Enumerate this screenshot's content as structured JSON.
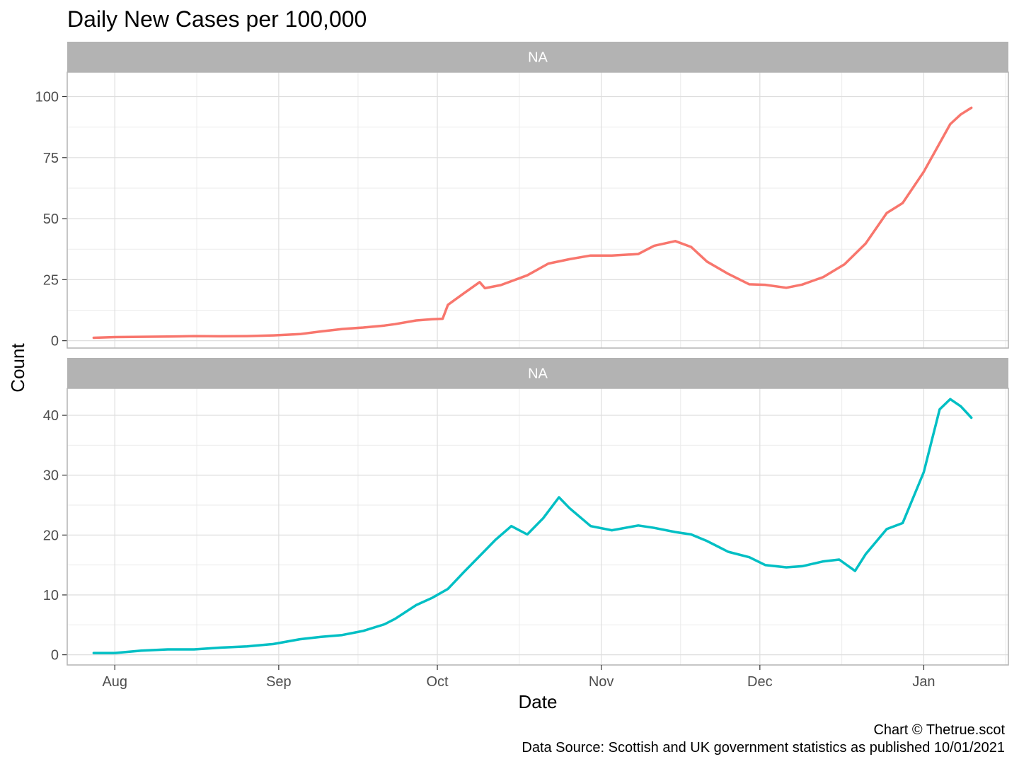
{
  "chart_data": {
    "type": "line",
    "title": "Daily New Cases per 100,000",
    "xlabel": "Date",
    "ylabel": "Count",
    "caption": [
      "Chart © Thetrue.scot",
      "Data Source: Scottish and UK government statistics as published 10/01/2021"
    ],
    "x_ticks": [
      {
        "label": "Aug",
        "date": "2020-08-01"
      },
      {
        "label": "Sep",
        "date": "2020-09-01"
      },
      {
        "label": "Oct",
        "date": "2020-10-01"
      },
      {
        "label": "Nov",
        "date": "2020-11-01"
      },
      {
        "label": "Dec",
        "date": "2020-12-01"
      },
      {
        "label": "Jan",
        "date": "2021-01-01"
      }
    ],
    "x_range": [
      "2020-07-23",
      "2021-01-17"
    ],
    "grid": true,
    "legend": "none",
    "panels": [
      {
        "strip": "NA",
        "color": "#F8766D",
        "ylim": [
          -3,
          110
        ],
        "y_ticks": [
          0,
          25,
          50,
          75,
          100
        ],
        "x": [
          "2020-07-28",
          "2020-08-01",
          "2020-08-06",
          "2020-08-11",
          "2020-08-16",
          "2020-08-21",
          "2020-08-26",
          "2020-08-31",
          "2020-09-05",
          "2020-09-09",
          "2020-09-13",
          "2020-09-17",
          "2020-09-21",
          "2020-09-23",
          "2020-09-27",
          "2020-09-30",
          "2020-10-02",
          "2020-10-03",
          "2020-10-06",
          "2020-10-09",
          "2020-10-10",
          "2020-10-13",
          "2020-10-18",
          "2020-10-22",
          "2020-10-26",
          "2020-10-30",
          "2020-11-03",
          "2020-11-08",
          "2020-11-11",
          "2020-11-15",
          "2020-11-18",
          "2020-11-21",
          "2020-11-25",
          "2020-11-29",
          "2020-12-02",
          "2020-12-06",
          "2020-12-09",
          "2020-12-13",
          "2020-12-17",
          "2020-12-21",
          "2020-12-25",
          "2020-12-28",
          "2021-01-01",
          "2021-01-03",
          "2021-01-06",
          "2021-01-08",
          "2021-01-10"
        ],
        "y": [
          1.2,
          1.5,
          1.6,
          1.7,
          1.9,
          1.8,
          1.9,
          2.2,
          2.7,
          3.8,
          4.8,
          5.4,
          6.2,
          6.8,
          8.3,
          8.8,
          9.0,
          14.7,
          19.4,
          24.0,
          21.5,
          22.8,
          26.8,
          31.6,
          33.4,
          34.9,
          34.9,
          35.5,
          38.9,
          40.8,
          38.4,
          32.4,
          27.4,
          23.1,
          22.9,
          21.7,
          23.0,
          26.1,
          31.3,
          39.8,
          52.3,
          56.4,
          69.2,
          77.0,
          88.7,
          92.7,
          95.4
        ]
      },
      {
        "strip": "NA",
        "color": "#00BFC4",
        "ylim": [
          -1.7,
          44.5
        ],
        "y_ticks": [
          0,
          10,
          20,
          30,
          40
        ],
        "x": [
          "2020-07-28",
          "2020-08-01",
          "2020-08-06",
          "2020-08-11",
          "2020-08-16",
          "2020-08-21",
          "2020-08-26",
          "2020-08-31",
          "2020-09-05",
          "2020-09-09",
          "2020-09-13",
          "2020-09-17",
          "2020-09-21",
          "2020-09-23",
          "2020-09-27",
          "2020-09-30",
          "2020-10-03",
          "2020-10-06",
          "2020-10-09",
          "2020-10-12",
          "2020-10-15",
          "2020-10-18",
          "2020-10-21",
          "2020-10-24",
          "2020-10-26",
          "2020-10-30",
          "2020-11-03",
          "2020-11-08",
          "2020-11-11",
          "2020-11-15",
          "2020-11-18",
          "2020-11-21",
          "2020-11-25",
          "2020-11-29",
          "2020-12-02",
          "2020-12-06",
          "2020-12-09",
          "2020-12-13",
          "2020-12-16",
          "2020-12-19",
          "2020-12-21",
          "2020-12-25",
          "2020-12-28",
          "2021-01-01",
          "2021-01-04",
          "2021-01-06",
          "2021-01-08",
          "2021-01-10"
        ],
        "y": [
          0.3,
          0.3,
          0.7,
          0.9,
          0.9,
          1.2,
          1.4,
          1.8,
          2.6,
          3.0,
          3.3,
          4.0,
          5.1,
          6.0,
          8.3,
          9.5,
          11.0,
          13.8,
          16.5,
          19.2,
          21.5,
          20.1,
          22.8,
          26.3,
          24.5,
          21.5,
          20.8,
          21.6,
          21.2,
          20.5,
          20.1,
          19.0,
          17.2,
          16.3,
          15.0,
          14.6,
          14.8,
          15.6,
          15.9,
          14.0,
          16.8,
          21.0,
          22.0,
          30.5,
          41.0,
          42.7,
          41.5,
          39.6
        ]
      }
    ]
  }
}
